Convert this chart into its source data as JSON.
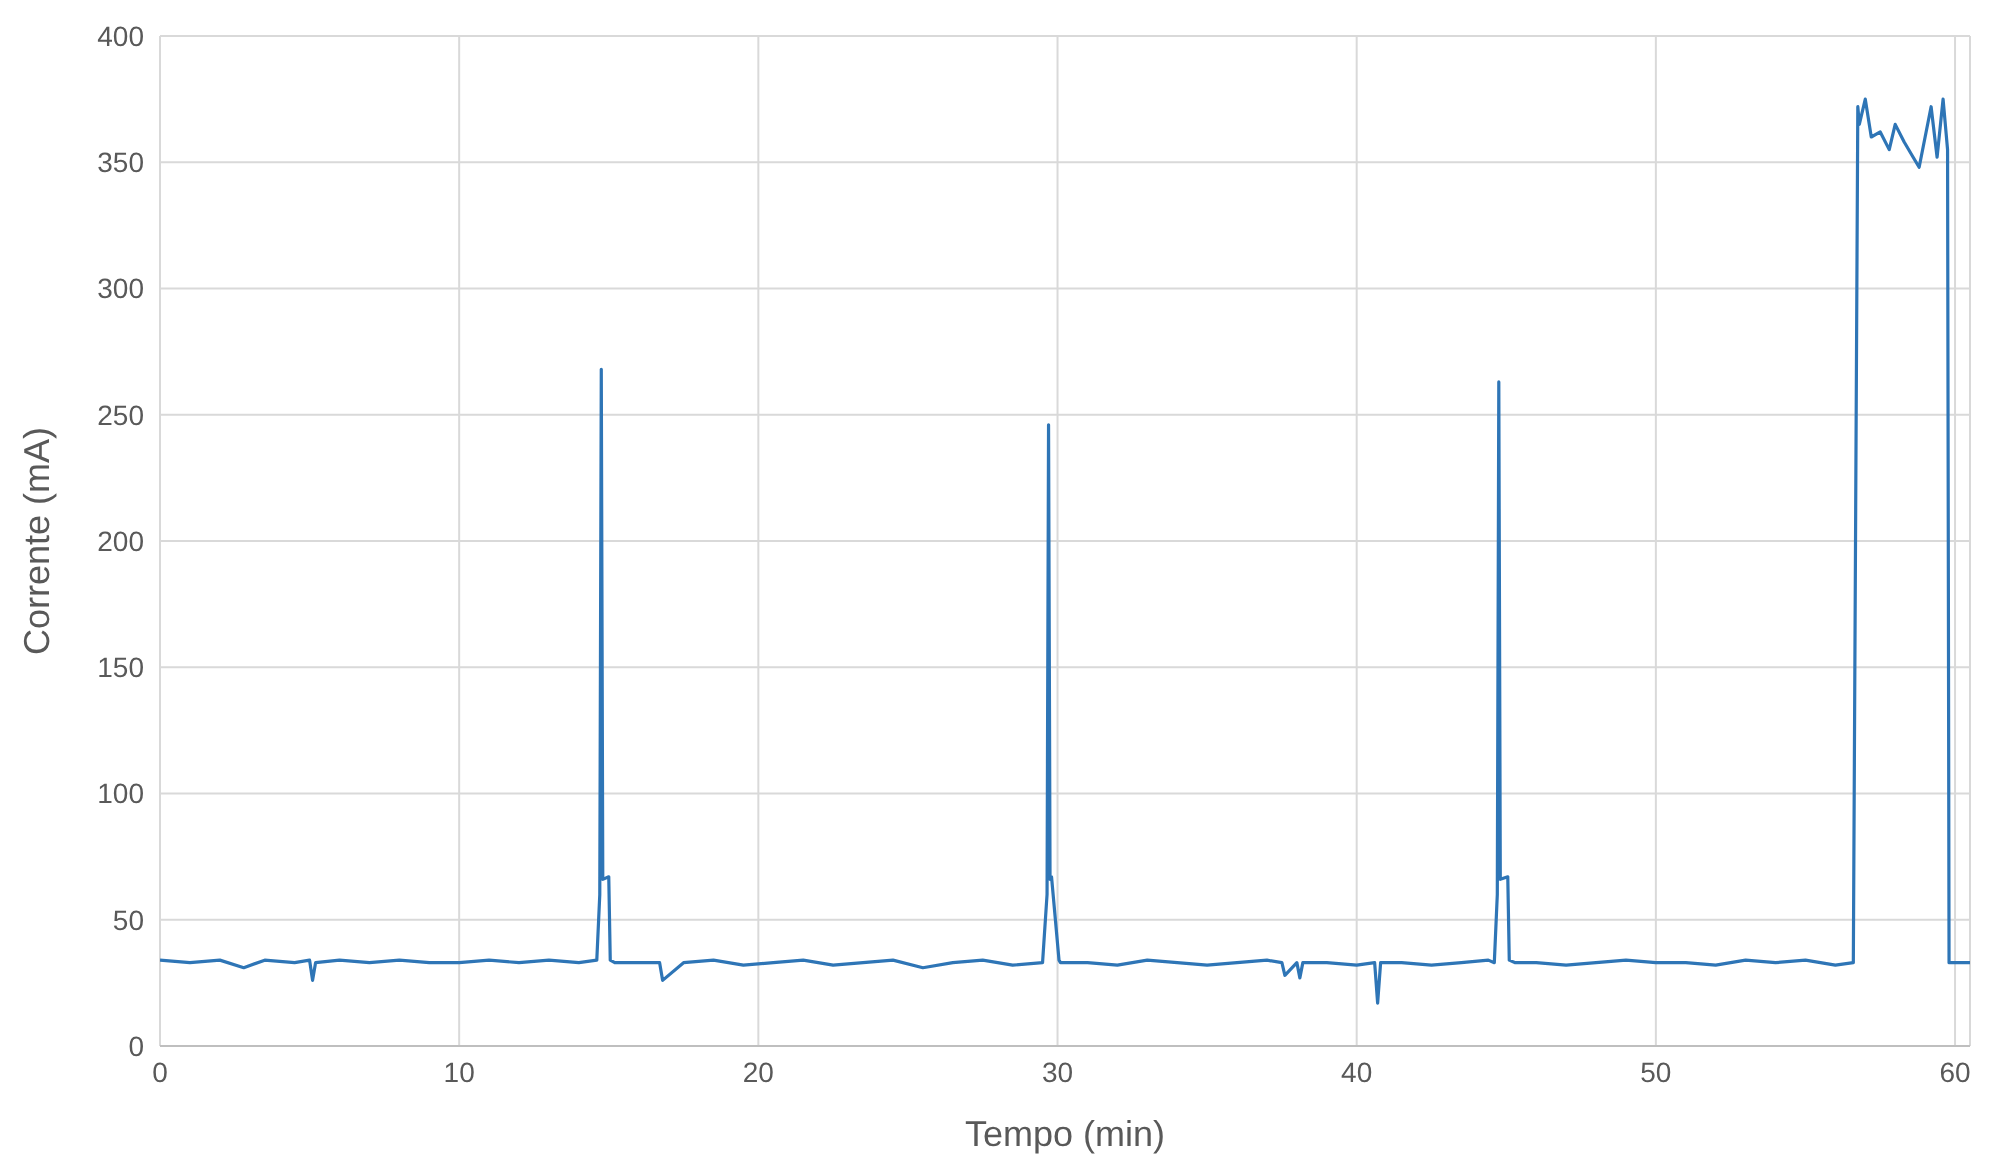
{
  "chart_data": {
    "type": "line",
    "xlabel": "Tempo (min)",
    "ylabel": "Corrente (mA)",
    "xlim": [
      0,
      60.5
    ],
    "xticks": [
      0,
      10,
      20,
      30,
      40,
      50,
      60
    ],
    "ylim": [
      0,
      400
    ],
    "yticks": [
      0,
      50,
      100,
      150,
      200,
      250,
      300,
      350,
      400
    ],
    "grid": true,
    "marker": "none",
    "line_style": "solid",
    "legend": false,
    "series": [
      {
        "color": "#2e75b6",
        "x": [
          0,
          1,
          2,
          2.8,
          3.5,
          4.5,
          5.0,
          5.1,
          5.2,
          6,
          7,
          8,
          9,
          10,
          11,
          12,
          13,
          14,
          14.6,
          14.7,
          14.75,
          14.8,
          15.0,
          15.05,
          15.2,
          16,
          16.7,
          16.8,
          17.5,
          18.5,
          19.5,
          20.5,
          21.5,
          22.5,
          23.5,
          24.5,
          25.5,
          26.5,
          27.5,
          28.5,
          29.5,
          29.65,
          29.7,
          29.75,
          29.8,
          30.05,
          30.1,
          30.3,
          31,
          32,
          33,
          34,
          35,
          36,
          37,
          37.5,
          37.6,
          38,
          38.1,
          38.2,
          39,
          40,
          40.6,
          40.7,
          40.8,
          41.5,
          42.5,
          43.5,
          44.4,
          44.6,
          44.7,
          44.75,
          44.8,
          45.05,
          45.1,
          45.3,
          46,
          47,
          48,
          49,
          50,
          51,
          52,
          53,
          54,
          55,
          56,
          56.6,
          56.7,
          56.75,
          56.8,
          57.0,
          57.2,
          57.5,
          57.8,
          58.0,
          58.3,
          58.6,
          58.8,
          59.0,
          59.2,
          59.4,
          59.6,
          59.75,
          59.8,
          59.9,
          60.5
        ],
        "values": [
          34,
          33,
          34,
          31,
          34,
          33,
          34,
          26,
          33,
          34,
          33,
          34,
          33,
          33,
          34,
          33,
          34,
          33,
          34,
          60,
          268,
          66,
          67,
          34,
          33,
          33,
          33,
          26,
          33,
          34,
          32,
          33,
          34,
          32,
          33,
          34,
          31,
          33,
          34,
          32,
          33,
          60,
          246,
          66,
          67,
          34,
          33,
          33,
          33,
          32,
          34,
          33,
          32,
          33,
          34,
          33,
          28,
          33,
          27,
          33,
          33,
          32,
          33,
          17,
          33,
          33,
          32,
          33,
          34,
          33,
          60,
          263,
          66,
          67,
          34,
          33,
          33,
          32,
          33,
          34,
          33,
          33,
          32,
          34,
          33,
          34,
          32,
          33,
          260,
          372,
          365,
          375,
          360,
          362,
          355,
          365,
          358,
          352,
          348,
          360,
          372,
          352,
          375,
          355,
          33,
          33,
          33
        ]
      }
    ]
  }
}
